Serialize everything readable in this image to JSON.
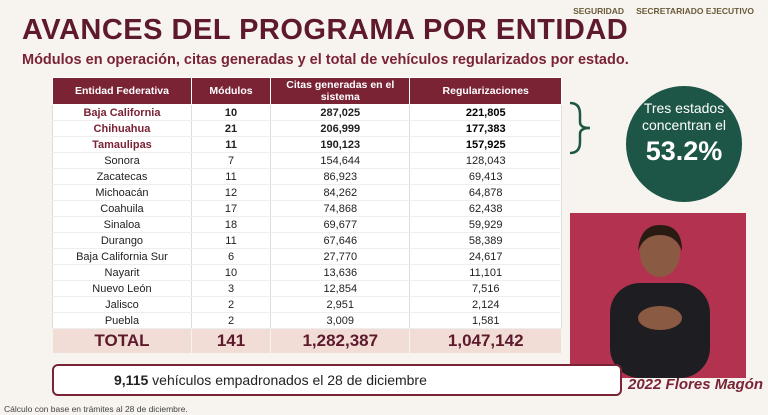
{
  "header": {
    "title": "AVANCES DEL PROGRAMA POR ENTIDAD",
    "subtitle": "Módulos en operación, citas generadas y el total de vehículos regularizados por estado.",
    "logos": [
      "SEGURIDAD",
      "SECRETARIADO EJECUTIVO"
    ]
  },
  "table": {
    "columns": [
      "Entidad Federativa",
      "Módulos",
      "Citas generadas en el sistema",
      "Regularizaciones"
    ],
    "rows": [
      [
        "Baja California",
        "10",
        "287,025",
        "221,805"
      ],
      [
        "Chihuahua",
        "21",
        "206,999",
        "177,383"
      ],
      [
        "Tamaulipas",
        "11",
        "190,123",
        "157,925"
      ],
      [
        "Sonora",
        "7",
        "154,644",
        "128,043"
      ],
      [
        "Zacatecas",
        "11",
        "86,923",
        "69,413"
      ],
      [
        "Michoacán",
        "12",
        "84,262",
        "64,878"
      ],
      [
        "Coahuila",
        "17",
        "74,868",
        "62,438"
      ],
      [
        "Sinaloa",
        "18",
        "69,677",
        "59,929"
      ],
      [
        "Durango",
        "11",
        "67,646",
        "58,389"
      ],
      [
        "Baja California Sur",
        "6",
        "27,770",
        "24,617"
      ],
      [
        "Nayarit",
        "10",
        "13,636",
        "11,101"
      ],
      [
        "Nuevo León",
        "3",
        "12,854",
        "7,516"
      ],
      [
        "Jalisco",
        "2",
        "2,951",
        "2,124"
      ],
      [
        "Puebla",
        "2",
        "3,009",
        "1,581"
      ]
    ],
    "total": [
      "TOTAL",
      "141",
      "1,282,387",
      "1,047,142"
    ]
  },
  "callout": {
    "text": "Tres estados concentran el",
    "value": "53.2%"
  },
  "note": {
    "number": "9,115",
    "text": "vehículos empadronados el 28 de diciembre"
  },
  "footnote": "Cálculo con base en trámites al 28 de diciembre.",
  "badge": "2022 Flores Magón"
}
